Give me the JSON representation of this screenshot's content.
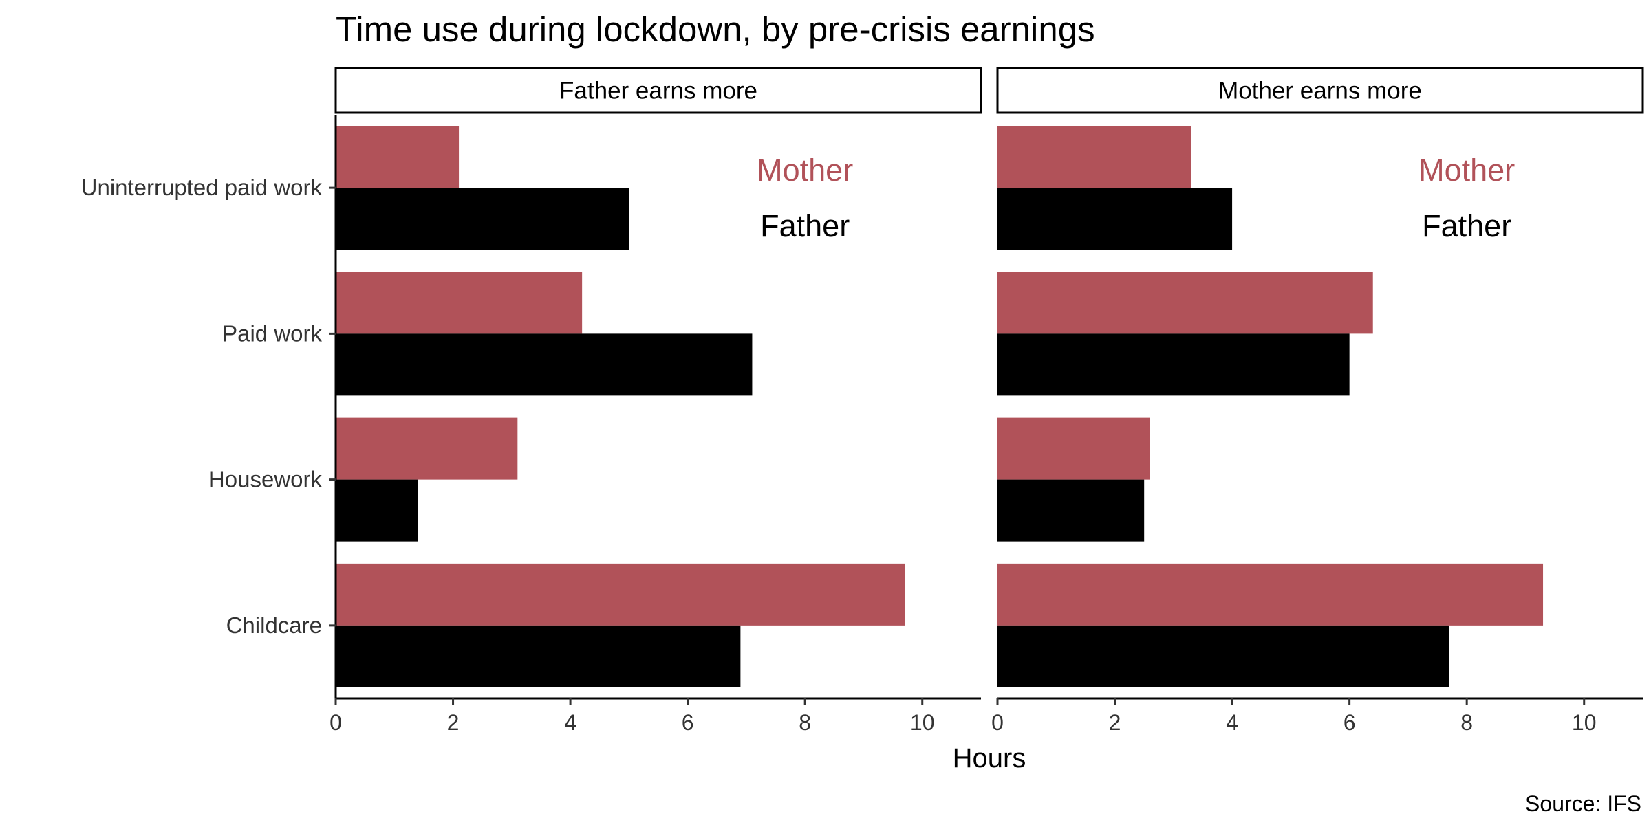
{
  "chart_data": {
    "type": "bar",
    "orientation": "horizontal",
    "title": "Time use during lockdown, by pre-crisis earnings",
    "xlabel": "Hours",
    "caption": "Source: IFS",
    "xlim": [
      0,
      11
    ],
    "xticks": [
      "0",
      "2",
      "4",
      "6",
      "8",
      "10"
    ],
    "categories": [
      "Uninterrupted paid work",
      "Paid work",
      "Housework",
      "Childcare"
    ],
    "legend": [
      {
        "name": "Mother",
        "color": "#b15259"
      },
      {
        "name": "Father",
        "color": "#000000"
      }
    ],
    "legend_position": "top-right inside each panel",
    "grid": false,
    "panels": [
      {
        "label": "Father earns more",
        "series": [
          {
            "name": "Mother",
            "values": [
              2.1,
              4.2,
              3.1,
              9.7
            ]
          },
          {
            "name": "Father",
            "values": [
              5.0,
              7.1,
              1.4,
              6.9
            ]
          }
        ]
      },
      {
        "label": "Mother earns more",
        "series": [
          {
            "name": "Mother",
            "values": [
              3.3,
              6.4,
              2.6,
              9.3
            ]
          },
          {
            "name": "Father",
            "values": [
              4.0,
              6.0,
              2.5,
              7.7
            ]
          }
        ]
      }
    ]
  }
}
